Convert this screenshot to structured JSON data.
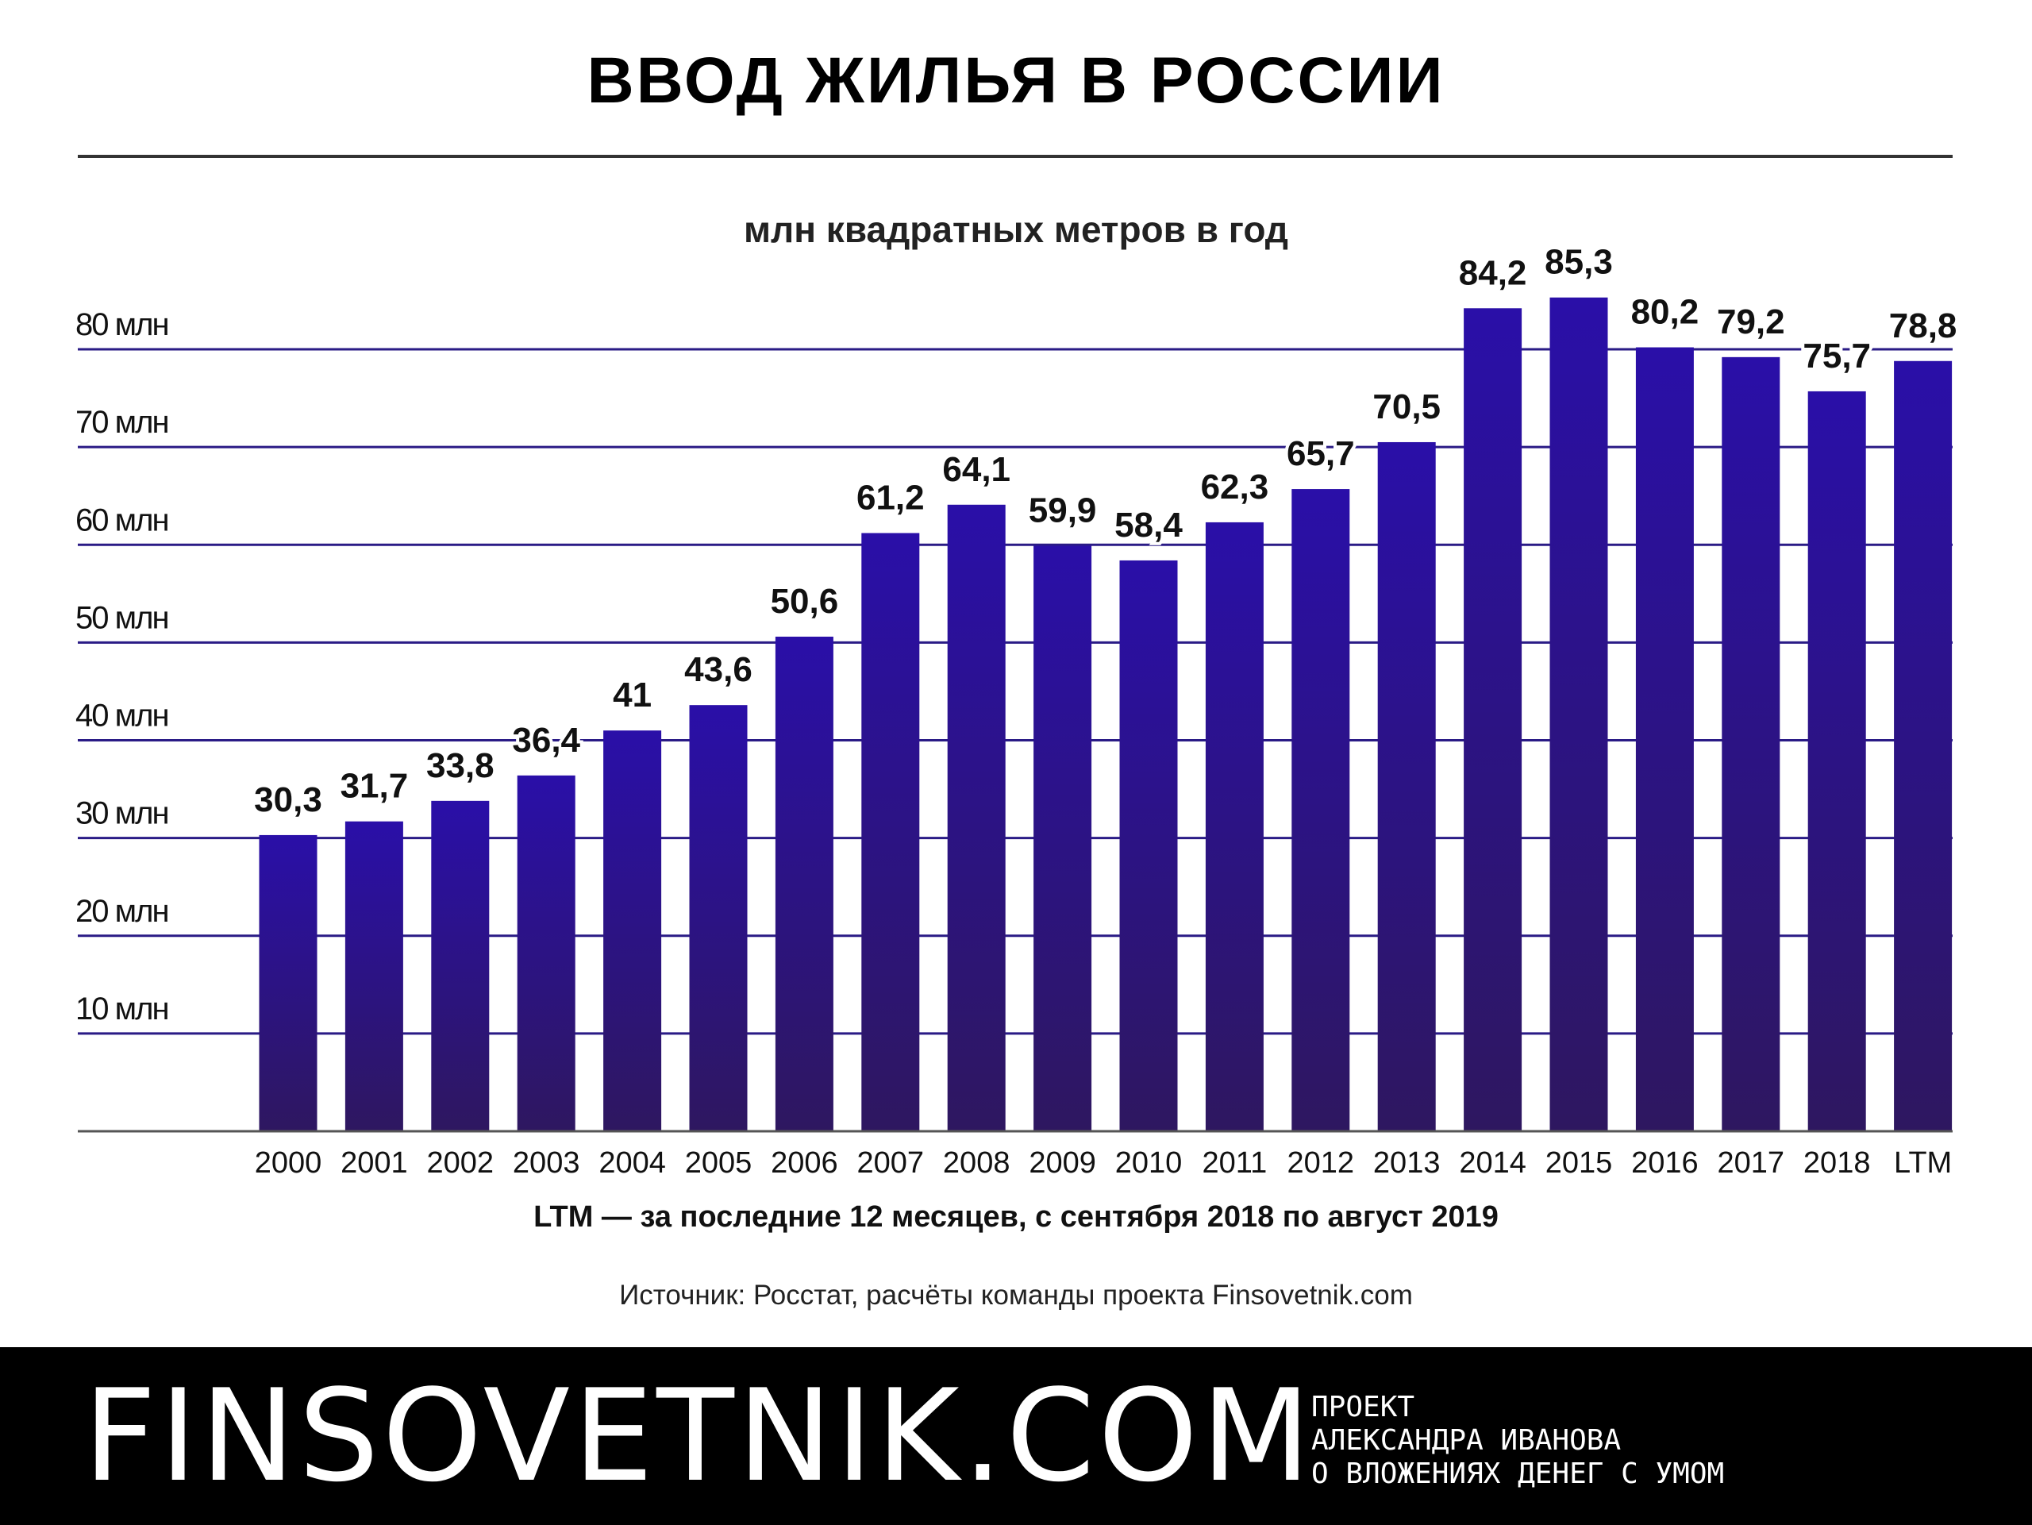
{
  "header": {
    "title": "ВВОД ЖИЛЬЯ В РОССИИ",
    "subtitle": "млн квадратных метров в год"
  },
  "chart_data": {
    "type": "bar",
    "categories": [
      "2000",
      "2001",
      "2002",
      "2003",
      "2004",
      "2005",
      "2006",
      "2007",
      "2008",
      "2009",
      "2010",
      "2011",
      "2012",
      "2013",
      "2014",
      "2015",
      "2016",
      "2017",
      "2018",
      "LTM"
    ],
    "values": [
      30.3,
      31.7,
      33.8,
      36.4,
      41,
      43.6,
      50.6,
      61.2,
      64.1,
      59.9,
      58.4,
      62.3,
      65.7,
      70.5,
      84.2,
      85.3,
      80.2,
      79.2,
      75.7,
      78.8
    ],
    "value_labels": [
      "30,3",
      "31,7",
      "33,8",
      "36,4",
      "41",
      "43,6",
      "50,6",
      "61,2",
      "64,1",
      "59,9",
      "58,4",
      "62,3",
      "65,7",
      "70,5",
      "84,2",
      "85,3",
      "80,2",
      "79,2",
      "75,7",
      "78,8"
    ],
    "ytick_labels": [
      "10 млн",
      "20 млн",
      "30 млн",
      "40 млн",
      "50 млн",
      "60 млн",
      "70 млн",
      "80 млн"
    ],
    "yticks": [
      10,
      20,
      30,
      40,
      50,
      60,
      70,
      80
    ],
    "ylim": [
      0,
      80
    ],
    "grid": true,
    "bar_color_top": "#2a0fa8",
    "bar_color_bottom": "#2e1760"
  },
  "note": "LTM — за последние 12 месяцев, с сентября 2018 по август 2019",
  "source": "Источник: Росстат, расчёты команды проекта Finsovetnik.com",
  "footer": {
    "brand": "FINSOVETNIK.COM",
    "tagline": [
      "ПРОЕКТ",
      "АЛЕКСАНДРА ИВАНОВА",
      "О ВЛОЖЕНИЯХ ДЕНЕГ С УМОМ"
    ]
  }
}
